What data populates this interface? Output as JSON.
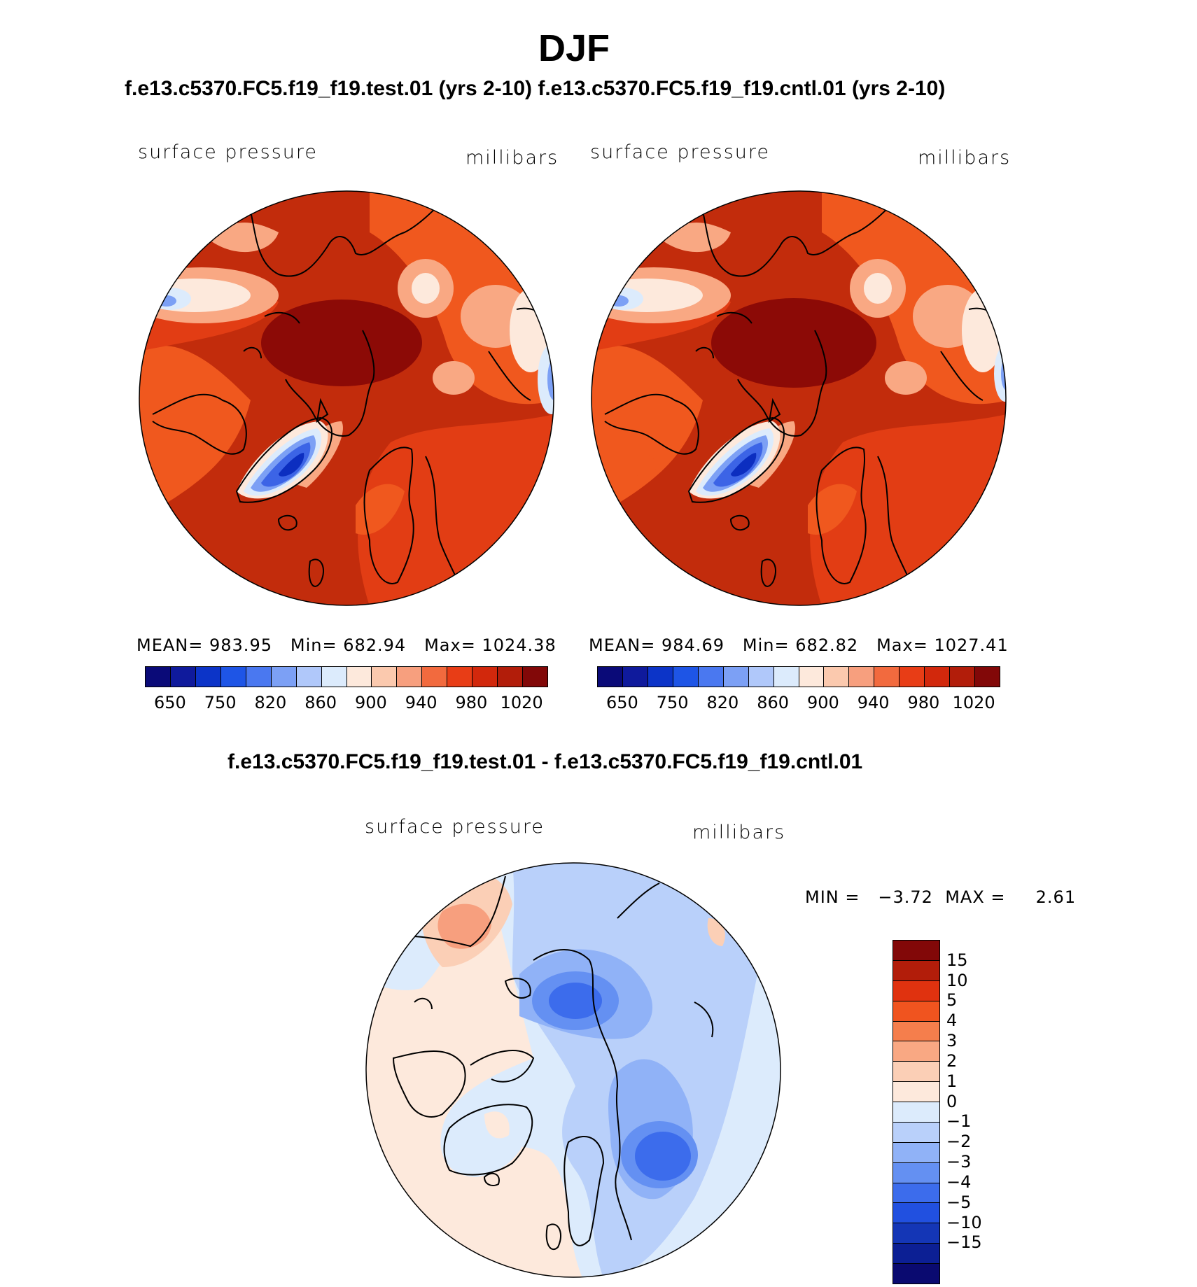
{
  "figure": {
    "season": "DJF",
    "subtitle": "f.e13.c5370.FC5.f19_f19.test.01 (yrs 2-10) f.e13.c5370.FC5.f19_f19.cntl.01 (yrs 2-10)",
    "diff_title": "f.e13.c5370.FC5.f19_f19.test.01 - f.e13.c5370.FC5.f19_f19.cntl.01"
  },
  "panels": [
    {
      "id": "test",
      "variable": "surface  pressure",
      "units": "millibars",
      "mean_label": "MEAN=",
      "mean": "983.95",
      "min_label": "Min=",
      "min": "682.94",
      "max_label": "Max=",
      "max": "1024.38"
    },
    {
      "id": "cntl",
      "variable": "surface  pressure",
      "units": "millibars",
      "mean_label": "MEAN=",
      "mean": "984.69",
      "min_label": "Min=",
      "min": "682.82",
      "max_label": "Max=",
      "max": "1027.41"
    }
  ],
  "diff_panel": {
    "variable": "surface  pressure",
    "units": "millibars",
    "min_label": "MIN =",
    "min": "−3.72",
    "max_label": "MAX =",
    "max": "2.61"
  },
  "abs_colorbar": {
    "colors": [
      "#0a0a78",
      "#0f1a9c",
      "#0c34c8",
      "#1e55e6",
      "#4a78f0",
      "#7ca0f5",
      "#b0c8fa",
      "#dcebfc",
      "#fde9dc",
      "#fbc9ae",
      "#f79f7e",
      "#f26a3e",
      "#e83d16",
      "#d2280c",
      "#b21d0a",
      "#820808"
    ],
    "labels": [
      "650",
      "750",
      "820",
      "860",
      "900",
      "940",
      "980",
      "1020"
    ]
  },
  "diff_colorbar": {
    "colors": [
      "#820808",
      "#b21d0a",
      "#e0320f",
      "#f0541f",
      "#f57e4c",
      "#f9a883",
      "#fbcfb6",
      "#fde9dc",
      "#dcebfc",
      "#b9d0fa",
      "#90b2f7",
      "#6490f2",
      "#3c6cec",
      "#2150e0",
      "#1436b6",
      "#0c1f94",
      "#0a0a70"
    ],
    "labels": [
      "15",
      "10",
      "5",
      "4",
      "3",
      "2",
      "1",
      "0",
      "−1",
      "−2",
      "−3",
      "−4",
      "−5",
      "−10",
      "−15"
    ]
  },
  "map_colors": {
    "abs_base": "#c22c0c",
    "abs_dark": "#8c0a06",
    "abs_mid": "#e23d14",
    "abs_light": "#f0581e",
    "abs_pale": "#f9a883",
    "abs_cream": "#fde9dc",
    "abs_ice": "#dcebfc",
    "abs_blue": "#7ca0f5",
    "abs_blue2": "#3c64e6",
    "abs_blue3": "#0c2ec0",
    "diff_cream": "#fde9dc",
    "diff_pale": "#dcebfc",
    "diff_blue1": "#b9d0fa",
    "diff_blue2": "#90b2f7",
    "diff_blue3": "#6490f2",
    "diff_blue4": "#3c6cec",
    "diff_red1": "#fbcfb6",
    "diff_red2": "#f79f7e"
  }
}
